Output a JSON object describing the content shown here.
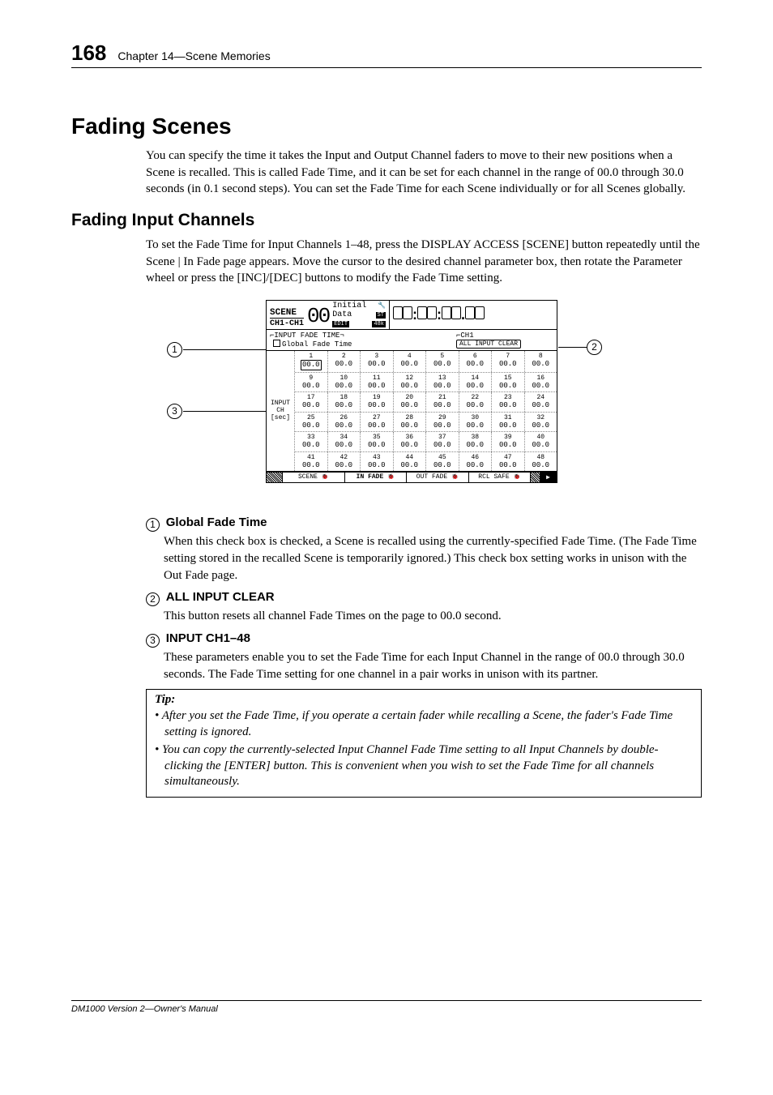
{
  "header": {
    "page_number": "168",
    "chapter": "Chapter 14—Scene Memories"
  },
  "h1": "Fading Scenes",
  "intro": "You can specify the time it takes the Input and Output Channel faders to move to their new positions when a Scene is recalled. This is called Fade Time, and it can be set for each channel in the range of 00.0 through 30.0 seconds (in 0.1 second steps). You can set the Fade Time for each Scene individually or for all Scenes globally.",
  "h2": "Fading Input Channels",
  "para2": "To set the Fade Time for Input Channels 1–48, press the DISPLAY ACCESS [SCENE] button repeatedly until the Scene | In Fade page appears. Move the cursor to the desired channel parameter box, then rotate the Parameter wheel or press the [INC]/[DEC] buttons to modify the Fade Time setting.",
  "lcd": {
    "scene_label": "SCENE",
    "ch_range": "CH1-CH1",
    "big": "00",
    "initial": "Initial Data",
    "edit": "EDIT",
    "st": "ST",
    "k48": "48k",
    "timecode": "00:00:00.00",
    "section": "INPUT FADE TIME",
    "global": "Global Fade Time",
    "ch1": "CH1",
    "allclr": "ALL INPUT CLEAR",
    "side_label_1": "INPUT",
    "side_label_2": "CH",
    "side_label_3": "[sec]",
    "cells": [
      [
        {
          "n": "1",
          "v": "00.0",
          "sel": true
        },
        {
          "n": "2",
          "v": "00.0"
        },
        {
          "n": "3",
          "v": "00.0"
        },
        {
          "n": "4",
          "v": "00.0"
        },
        {
          "n": "5",
          "v": "00.0"
        },
        {
          "n": "6",
          "v": "00.0"
        },
        {
          "n": "7",
          "v": "00.0"
        },
        {
          "n": "8",
          "v": "00.0"
        }
      ],
      [
        {
          "n": "9",
          "v": "00.0"
        },
        {
          "n": "10",
          "v": "00.0"
        },
        {
          "n": "11",
          "v": "00.0"
        },
        {
          "n": "12",
          "v": "00.0"
        },
        {
          "n": "13",
          "v": "00.0"
        },
        {
          "n": "14",
          "v": "00.0"
        },
        {
          "n": "15",
          "v": "00.0"
        },
        {
          "n": "16",
          "v": "00.0"
        }
      ],
      [
        {
          "n": "17",
          "v": "00.0"
        },
        {
          "n": "18",
          "v": "00.0"
        },
        {
          "n": "19",
          "v": "00.0"
        },
        {
          "n": "20",
          "v": "00.0"
        },
        {
          "n": "21",
          "v": "00.0"
        },
        {
          "n": "22",
          "v": "00.0"
        },
        {
          "n": "23",
          "v": "00.0"
        },
        {
          "n": "24",
          "v": "00.0"
        }
      ],
      [
        {
          "n": "25",
          "v": "00.0"
        },
        {
          "n": "26",
          "v": "00.0"
        },
        {
          "n": "27",
          "v": "00.0"
        },
        {
          "n": "28",
          "v": "00.0"
        },
        {
          "n": "29",
          "v": "00.0"
        },
        {
          "n": "30",
          "v": "00.0"
        },
        {
          "n": "31",
          "v": "00.0"
        },
        {
          "n": "32",
          "v": "00.0"
        }
      ],
      [
        {
          "n": "33",
          "v": "00.0"
        },
        {
          "n": "34",
          "v": "00.0"
        },
        {
          "n": "35",
          "v": "00.0"
        },
        {
          "n": "36",
          "v": "00.0"
        },
        {
          "n": "37",
          "v": "00.0"
        },
        {
          "n": "38",
          "v": "00.0"
        },
        {
          "n": "39",
          "v": "00.0"
        },
        {
          "n": "40",
          "v": "00.0"
        }
      ],
      [
        {
          "n": "41",
          "v": "00.0"
        },
        {
          "n": "42",
          "v": "00.0"
        },
        {
          "n": "43",
          "v": "00.0"
        },
        {
          "n": "44",
          "v": "00.0"
        },
        {
          "n": "45",
          "v": "00.0"
        },
        {
          "n": "46",
          "v": "00.0"
        },
        {
          "n": "47",
          "v": "00.0"
        },
        {
          "n": "48",
          "v": "00.0"
        }
      ]
    ],
    "tabs": [
      "SCENE",
      "IN FADE",
      "OUT FADE",
      "RCL SAFE"
    ]
  },
  "items": [
    {
      "num": "1",
      "label": "Global Fade Time",
      "body": "When this check box is checked, a Scene is recalled using the currently-specified Fade Time. (The Fade Time setting stored in the recalled Scene is temporarily ignored.) This check box setting works in unison with the Out Fade page."
    },
    {
      "num": "2",
      "label": "ALL INPUT CLEAR",
      "body": "This button resets all channel Fade Times on the page to 00.0 second."
    },
    {
      "num": "3",
      "label": "INPUT CH1–48",
      "body": "These parameters enable you to set the Fade Time for each Input Channel in the range of 00.0 through 30.0 seconds. The Fade Time setting for one channel in a pair works in unison with its partner."
    }
  ],
  "tip": {
    "label": "Tip:",
    "bullets": [
      "After you set the Fade Time, if you operate a certain fader while recalling a Scene, the fader's Fade Time setting is ignored.",
      "You can copy the currently-selected Input Channel Fade Time setting to all Input Channels by double-clicking the [ENTER] button. This is convenient when you wish to set the Fade Time for all channels simultaneously."
    ]
  },
  "footer": "DM1000 Version 2—Owner's Manual"
}
